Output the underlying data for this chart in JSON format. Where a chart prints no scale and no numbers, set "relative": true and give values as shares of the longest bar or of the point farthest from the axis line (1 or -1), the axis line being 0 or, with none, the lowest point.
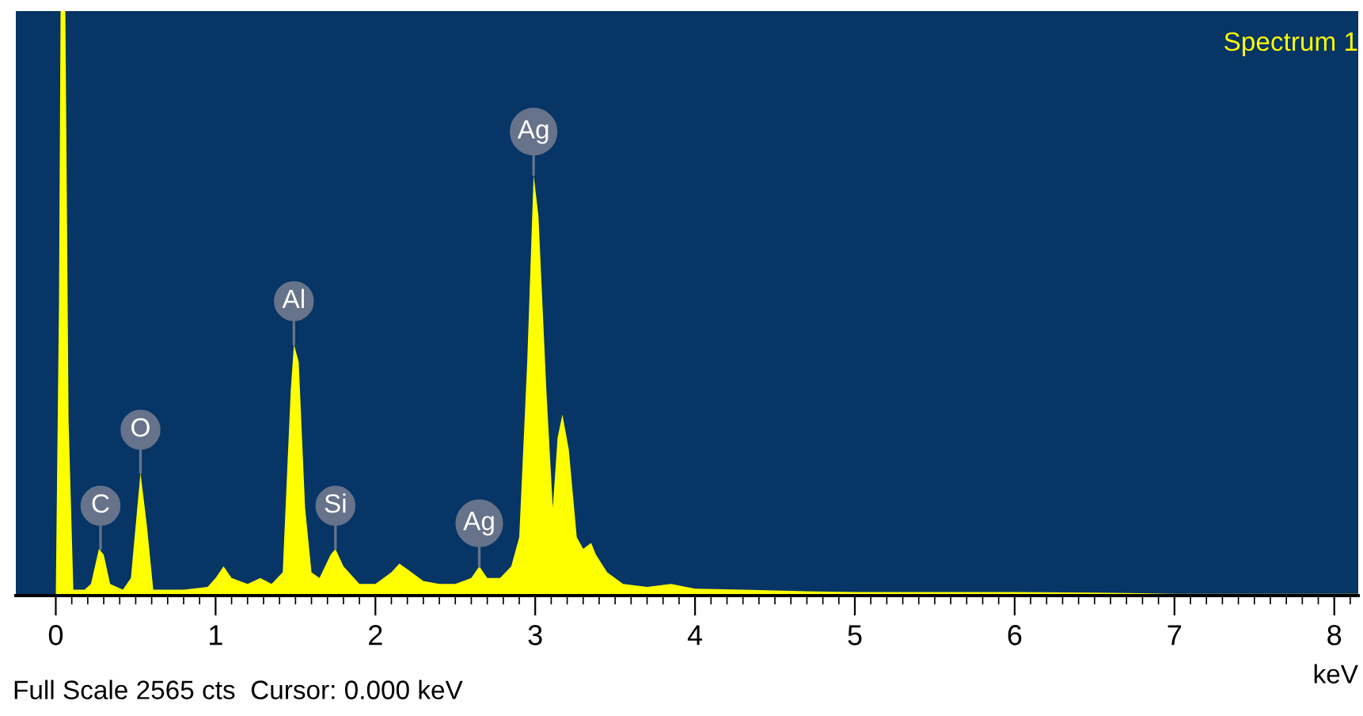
{
  "chart_data": {
    "type": "area",
    "title": "Spectrum 1",
    "xlabel": "keV",
    "relative": true,
    "xlim": [
      -0.25,
      8.15
    ],
    "xticks": [
      0,
      1,
      2,
      3,
      4,
      5,
      6,
      7,
      8,
      {
        "value": 0.1,
        "label": null
      },
      {
        "value": 0.2,
        "label": null
      },
      {
        "value": 0.3,
        "label": null
      },
      {
        "value": 0.4,
        "label": null
      },
      {
        "value": 0.5,
        "label": null
      },
      {
        "value": 0.6,
        "label": null
      },
      {
        "value": 0.7,
        "label": null
      },
      {
        "value": 0.8,
        "label": null
      },
      {
        "value": 0.9,
        "label": null
      },
      {
        "value": 1.1,
        "label": null
      },
      {
        "value": 1.2,
        "label": null
      },
      {
        "value": 1.3,
        "label": null
      },
      {
        "value": 1.4,
        "label": null
      },
      {
        "value": 1.5,
        "label": null
      },
      {
        "value": 1.6,
        "label": null
      },
      {
        "value": 1.7,
        "label": null
      },
      {
        "value": 1.8,
        "label": null
      },
      {
        "value": 1.9,
        "label": null
      },
      {
        "value": 2.1,
        "label": null
      },
      {
        "value": 2.2,
        "label": null
      },
      {
        "value": 2.3,
        "label": null
      },
      {
        "value": 2.4,
        "label": null
      },
      {
        "value": 2.5,
        "label": null
      },
      {
        "value": 2.6,
        "label": null
      },
      {
        "value": 2.7,
        "label": null
      },
      {
        "value": 2.8,
        "label": null
      },
      {
        "value": 2.9,
        "label": null
      },
      {
        "value": 3.1,
        "label": null
      },
      {
        "value": 3.2,
        "label": null
      },
      {
        "value": 3.3,
        "label": null
      },
      {
        "value": 3.4,
        "label": null
      },
      {
        "value": 3.5,
        "label": null
      },
      {
        "value": 3.6,
        "label": null
      },
      {
        "value": 3.7,
        "label": null
      },
      {
        "value": 3.8,
        "label": null
      },
      {
        "value": 3.9,
        "label": null
      },
      {
        "value": 4.1,
        "label": null
      },
      {
        "value": 4.2,
        "label": null
      },
      {
        "value": 4.3,
        "label": null
      },
      {
        "value": 4.4,
        "label": null
      },
      {
        "value": 4.5,
        "label": null
      },
      {
        "value": 4.6,
        "label": null
      },
      {
        "value": 4.7,
        "label": null
      },
      {
        "value": 4.8,
        "label": null
      },
      {
        "value": 4.9,
        "label": null
      },
      {
        "value": 5.1,
        "label": null
      },
      {
        "value": 5.2,
        "label": null
      },
      {
        "value": 5.3,
        "label": null
      },
      {
        "value": 5.4,
        "label": null
      },
      {
        "value": 5.5,
        "label": null
      },
      {
        "value": 5.6,
        "label": null
      },
      {
        "value": 5.7,
        "label": null
      },
      {
        "value": 5.8,
        "label": null
      },
      {
        "value": 5.9,
        "label": null
      },
      {
        "value": 6.1,
        "label": null
      },
      {
        "value": 6.2,
        "label": null
      },
      {
        "value": 6.3,
        "label": null
      },
      {
        "value": 6.4,
        "label": null
      },
      {
        "value": 6.5,
        "label": null
      },
      {
        "value": 6.6,
        "label": null
      },
      {
        "value": 6.7,
        "label": null
      },
      {
        "value": 6.8,
        "label": null
      },
      {
        "value": 6.9,
        "label": null
      },
      {
        "value": 7.1,
        "label": null
      },
      {
        "value": 7.2,
        "label": null
      },
      {
        "value": 7.3,
        "label": null
      },
      {
        "value": 7.4,
        "label": null
      },
      {
        "value": 7.5,
        "label": null
      },
      {
        "value": 7.6,
        "label": null
      },
      {
        "value": 7.7,
        "label": null
      },
      {
        "value": 7.8,
        "label": null
      },
      {
        "value": 7.9,
        "label": null
      },
      {
        "value": 8.1,
        "label": null
      }
    ],
    "series": [
      {
        "color": "#ffff00",
        "x": [
          0.0,
          0.02,
          0.03,
          0.06,
          0.08,
          0.11,
          0.18,
          0.22,
          0.27,
          0.3,
          0.34,
          0.42,
          0.47,
          0.53,
          0.57,
          0.61,
          0.8,
          0.95,
          1.0,
          1.05,
          1.1,
          1.2,
          1.28,
          1.35,
          1.42,
          1.47,
          1.49,
          1.52,
          1.56,
          1.6,
          1.65,
          1.72,
          1.75,
          1.8,
          1.9,
          2.0,
          2.1,
          2.15,
          2.2,
          2.3,
          2.4,
          2.5,
          2.6,
          2.65,
          2.7,
          2.78,
          2.85,
          2.9,
          2.95,
          2.99,
          3.02,
          3.07,
          3.11,
          3.14,
          3.17,
          3.21,
          3.26,
          3.3,
          3.35,
          3.38,
          3.45,
          3.55,
          3.7,
          3.85,
          4.0,
          4.3,
          4.6,
          5.0,
          5.5,
          6.0,
          6.5,
          6.8,
          7.0,
          8.15
        ],
        "values": [
          0,
          0.5,
          1.0,
          1.0,
          0.3,
          0.01,
          0.01,
          0.02,
          0.08,
          0.07,
          0.02,
          0.01,
          0.03,
          0.21,
          0.12,
          0.01,
          0.01,
          0.015,
          0.03,
          0.05,
          0.03,
          0.02,
          0.03,
          0.02,
          0.04,
          0.35,
          0.43,
          0.4,
          0.15,
          0.04,
          0.03,
          0.07,
          0.08,
          0.05,
          0.02,
          0.02,
          0.04,
          0.055,
          0.045,
          0.025,
          0.02,
          0.02,
          0.03,
          0.05,
          0.03,
          0.03,
          0.05,
          0.1,
          0.4,
          0.72,
          0.65,
          0.35,
          0.15,
          0.27,
          0.31,
          0.25,
          0.1,
          0.08,
          0.09,
          0.07,
          0.04,
          0.02,
          0.015,
          0.02,
          0.012,
          0.01,
          0.008,
          0.006,
          0.006,
          0.006,
          0.005,
          0.004,
          0.003,
          0.003
        ]
      }
    ],
    "annotations": [
      {
        "text": "C",
        "x": 0.28,
        "y": 0.08
      },
      {
        "text": "O",
        "x": 0.53,
        "y": 0.21
      },
      {
        "text": "Al",
        "x": 1.49,
        "y": 0.43
      },
      {
        "text": "Si",
        "x": 1.75,
        "y": 0.08
      },
      {
        "text": "Ag",
        "x": 2.65,
        "y": 0.05
      },
      {
        "text": "Ag",
        "x": 2.99,
        "y": 0.72
      },
      "Full Scale 2565 cts  Cursor: 0.000 keV"
    ]
  }
}
